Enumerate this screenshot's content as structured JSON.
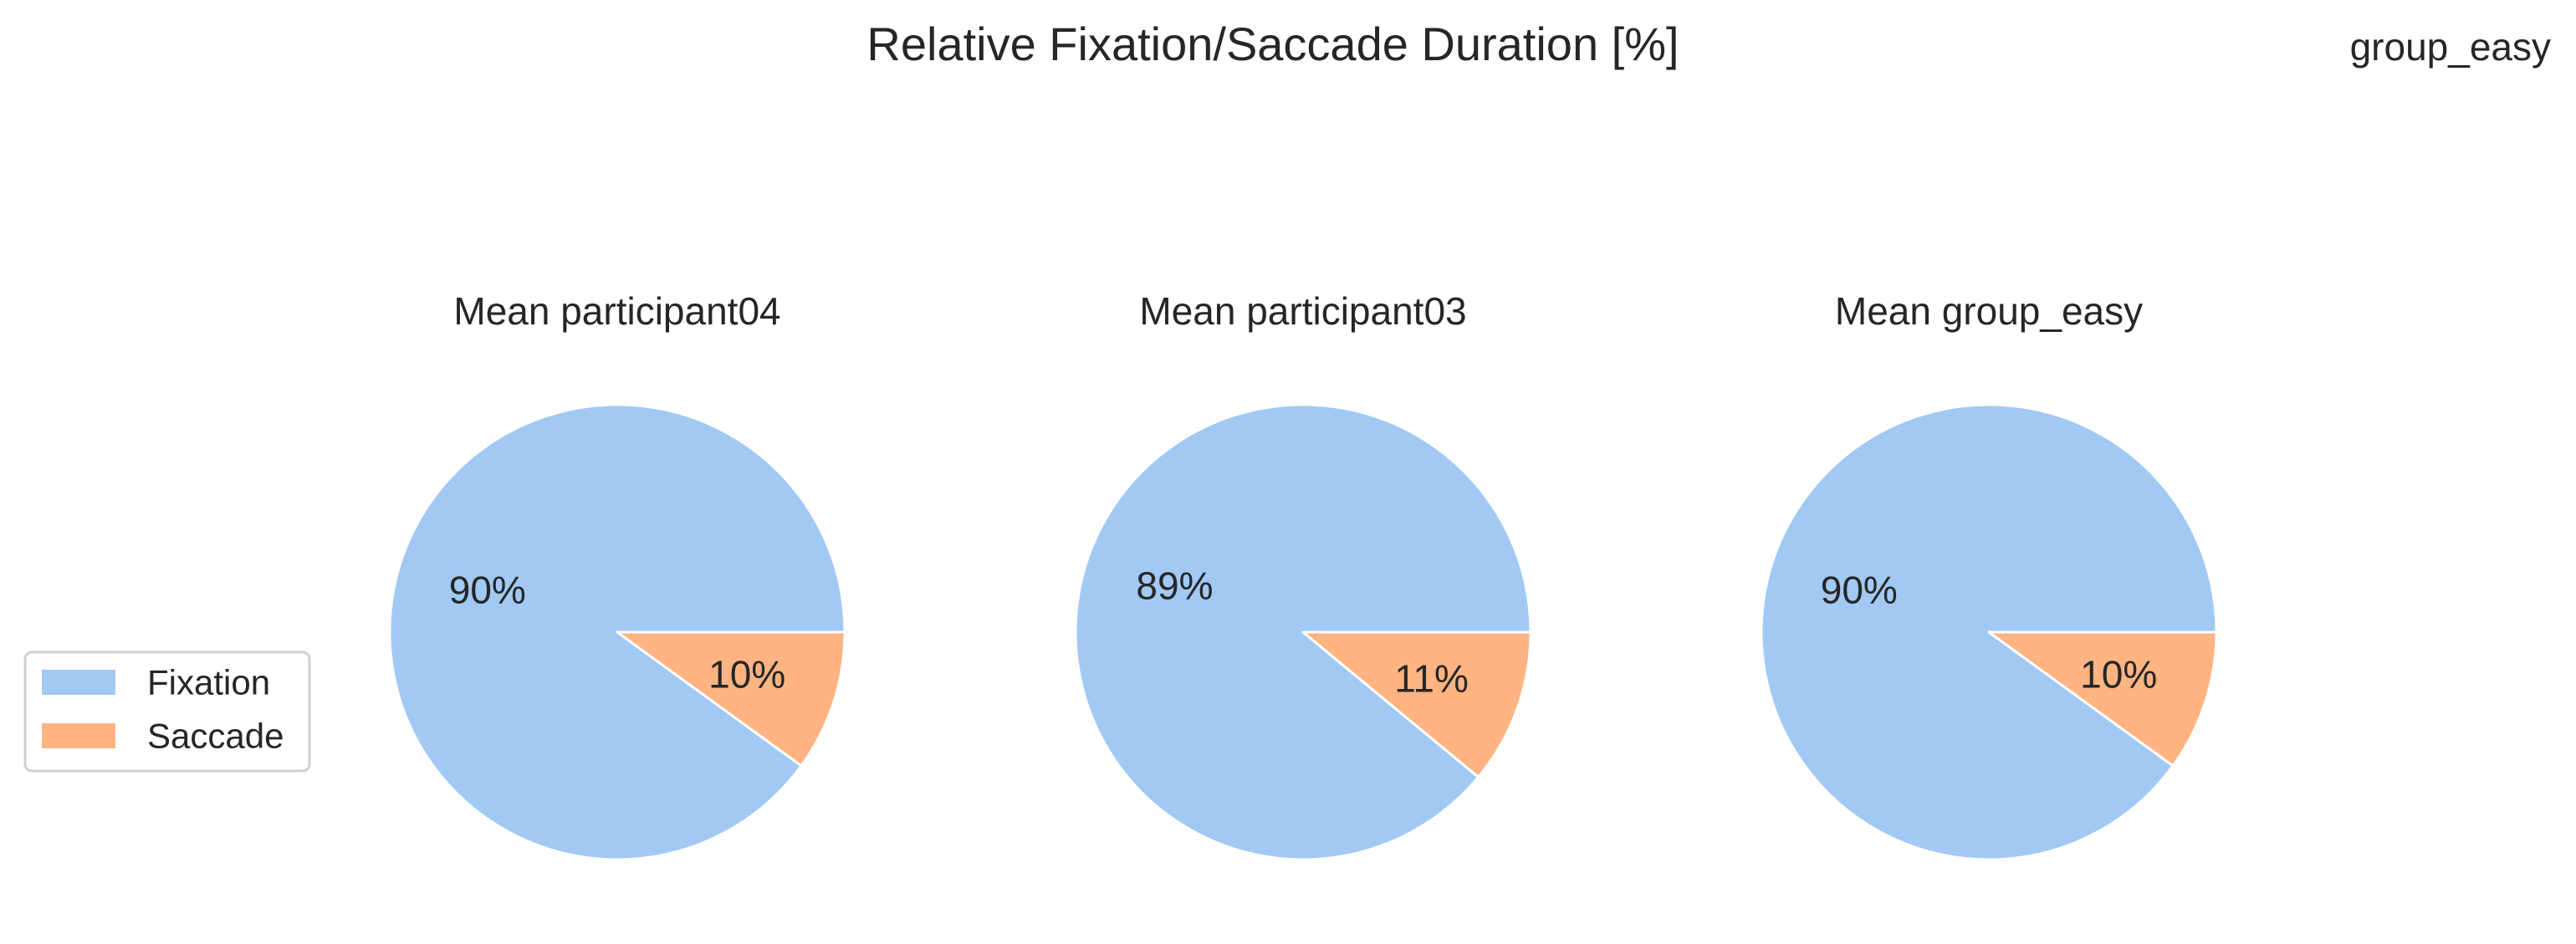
{
  "figure": {
    "suptitle": "Relative Fixation/Saccade Duration [%]",
    "corner_label": "group_easy"
  },
  "chart_data": [
    {
      "type": "pie",
      "title": "Mean participant04",
      "categories": [
        "Fixation",
        "Saccade"
      ],
      "values": [
        90,
        10
      ],
      "labels": [
        "90%",
        "10%"
      ],
      "colors": [
        "#a1c9f4",
        "#ffb482"
      ]
    },
    {
      "type": "pie",
      "title": "Mean participant03",
      "categories": [
        "Fixation",
        "Saccade"
      ],
      "values": [
        89,
        11
      ],
      "labels": [
        "89%",
        "11%"
      ],
      "colors": [
        "#a1c9f4",
        "#ffb482"
      ]
    },
    {
      "type": "pie",
      "title": "Mean group_easy",
      "categories": [
        "Fixation",
        "Saccade"
      ],
      "values": [
        90,
        10
      ],
      "labels": [
        "90%",
        "10%"
      ],
      "colors": [
        "#a1c9f4",
        "#ffb482"
      ]
    }
  ],
  "legend": {
    "placement": "center-left",
    "items": [
      {
        "label": "Fixation",
        "color": "#a1c9f4"
      },
      {
        "label": "Saccade",
        "color": "#ffb482"
      }
    ]
  }
}
